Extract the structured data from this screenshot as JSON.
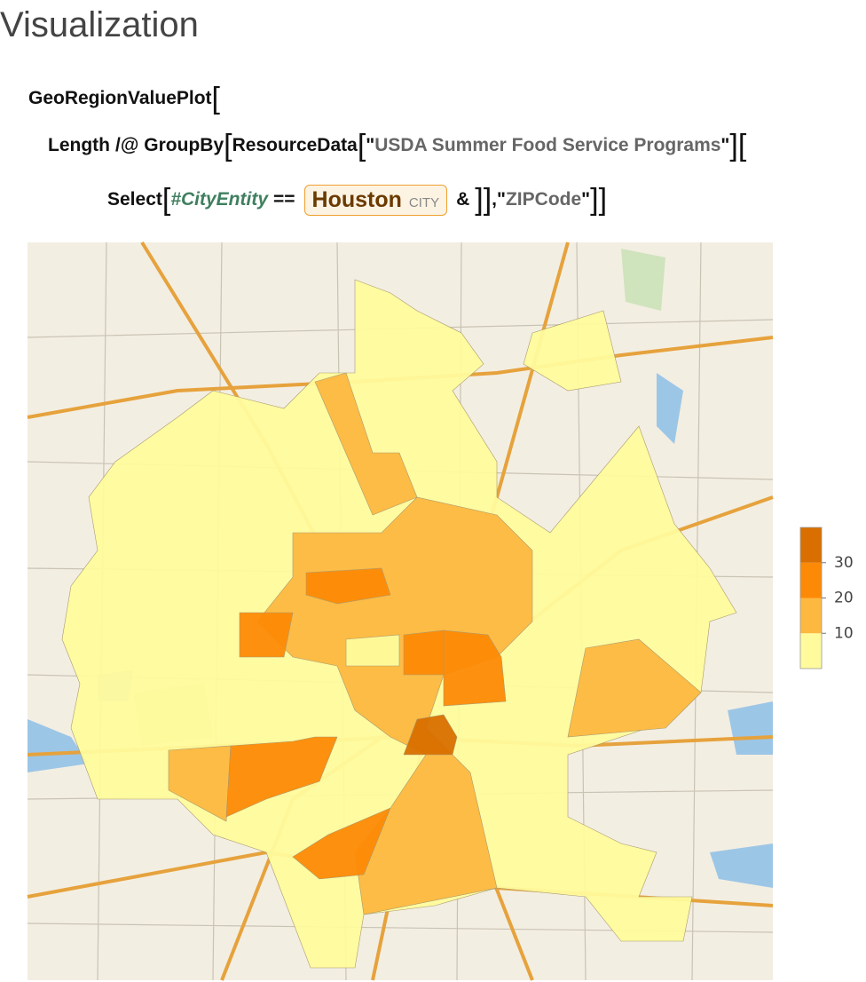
{
  "heading": "Visualization",
  "code": [
    [
      {
        "style": "plain",
        "text": "GeoRegionValuePlot"
      },
      {
        "style": "bracket",
        "text": "["
      }
    ],
    [
      {
        "style": "plain",
        "text": "Length"
      },
      {
        "style": "op",
        "text": "/@"
      },
      {
        "style": "plain",
        "text": "GroupBy"
      },
      {
        "style": "bracket",
        "text": "["
      },
      {
        "style": "plain",
        "text": "ResourceData"
      },
      {
        "style": "bracket",
        "text": "["
      },
      {
        "style": "plain",
        "text": "\""
      },
      {
        "style": "string",
        "text": "USDA Summer Food Service Programs"
      },
      {
        "style": "plain",
        "text": "\""
      },
      {
        "style": "bracket",
        "text": "]["
      }
    ],
    [
      {
        "style": "plain",
        "text": "Select"
      },
      {
        "style": "bracket",
        "text": "["
      },
      {
        "style": "slot",
        "text": "#CityEntity"
      },
      {
        "style": "op",
        "text": "=="
      },
      {
        "style": "entity",
        "text": "Houston",
        "type": "CITY"
      },
      {
        "style": "op",
        "text": "&"
      },
      {
        "style": "bracket",
        "text": "]]"
      },
      {
        "style": "plain",
        "text": ","
      },
      {
        "style": "plain",
        "text": "\""
      },
      {
        "style": "string",
        "text": "ZIPCode"
      },
      {
        "style": "plain",
        "text": "\""
      },
      {
        "style": "bracket",
        "text": "]]"
      }
    ]
  ],
  "legend": {
    "range": [
      0,
      40
    ],
    "ticks": [
      10,
      20,
      30
    ],
    "colors": [
      "#fffb9c",
      "#fdb840",
      "#fd8a06",
      "#d96f00"
    ]
  }
}
